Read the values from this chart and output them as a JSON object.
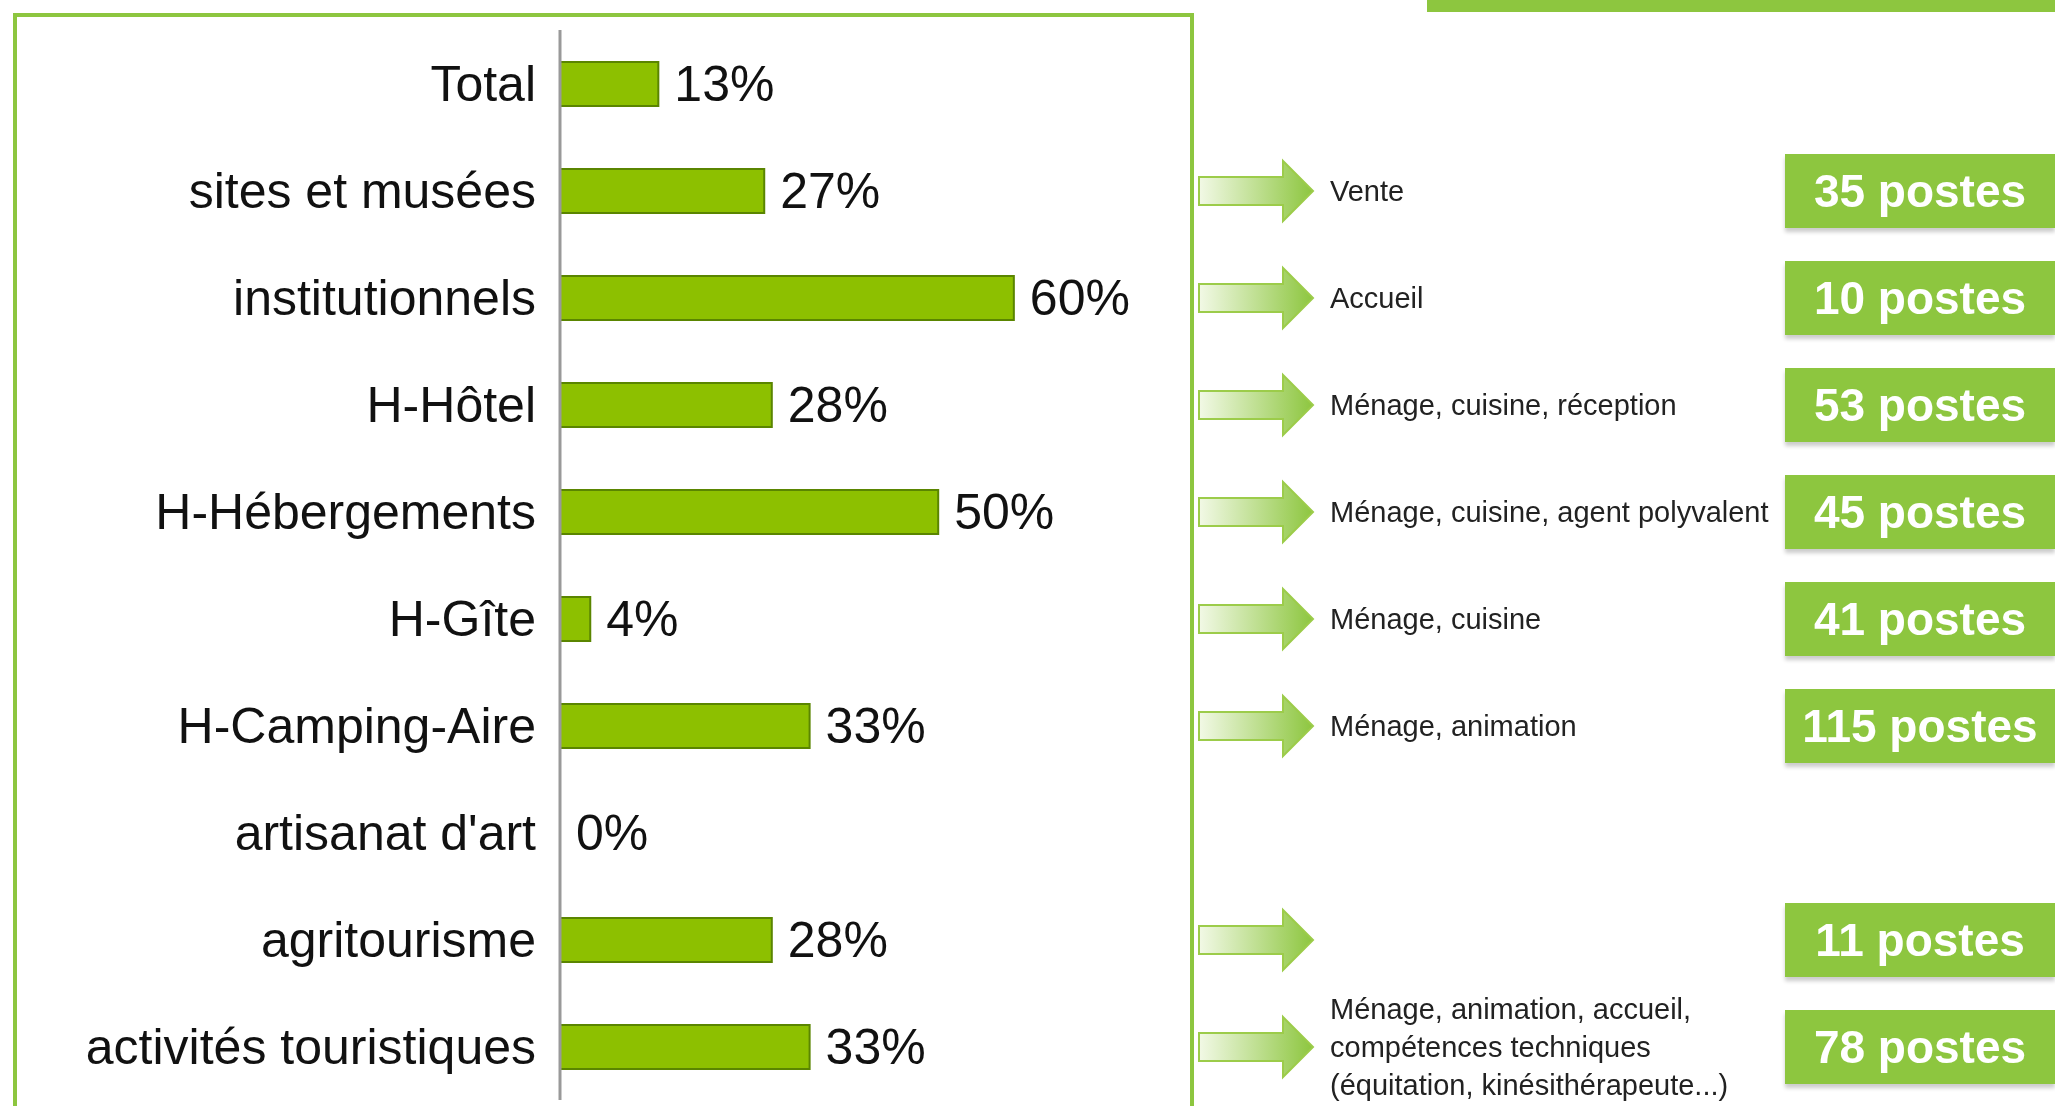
{
  "chart_data": {
    "type": "bar",
    "orientation": "horizontal",
    "categories": [
      "Total",
      "sites et musées",
      "institutionnels",
      "H-Hôtel",
      "H-Hébergements",
      "H-Gîte",
      "H-Camping-Aire",
      "artisanat d'art",
      "agritourisme",
      "activités touristiques"
    ],
    "values": [
      13,
      27,
      60,
      28,
      50,
      4,
      33,
      0,
      28,
      33
    ],
    "value_labels": [
      "13%",
      "27%",
      "60%",
      "28%",
      "50%",
      "4%",
      "33%",
      "0%",
      "28%",
      "33%"
    ],
    "color": "#8dc000",
    "annotations": [
      "Vente",
      "35 postes",
      "Accueil",
      "10 postes",
      "Ménage, cuisine, réception",
      "53 postes",
      "Ménage, cuisine, agent polyvalent",
      "45 postes",
      "Ménage, cuisine",
      "41 postes",
      "Ménage, animation",
      "115 postes",
      "11 postes",
      "Ménage, animation, accueil, compétences techniques (équitation, kinésithérapeute...)",
      "78 postes"
    ]
  }
}
